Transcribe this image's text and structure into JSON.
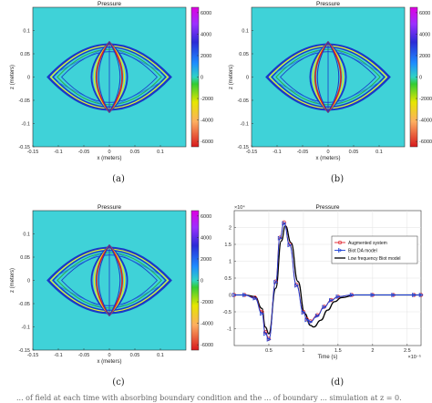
{
  "figure": {
    "captions": [
      "(a)",
      "(b)",
      "(c)",
      "(d)"
    ],
    "bottom_text": "... of field at each time with absorbing boundary condition and the ... of boundary ... simulation at z = 0."
  },
  "chart_data": [
    {
      "type": "heatmap",
      "title": "Pressure",
      "xlabel": "x (meters)",
      "ylabel": "z (meters)",
      "xlim": [
        -0.15,
        0.15
      ],
      "ylim": [
        -0.15,
        0.15
      ],
      "xticks": [
        "-0.15",
        "-0.1",
        "-0.05",
        "0",
        "0.05",
        "0.1"
      ],
      "yticks": [
        "0.1",
        "0.05",
        "0",
        "-0.05",
        "-0.1",
        "-0.15"
      ],
      "colorbar": {
        "range": [
          -6500,
          6500
        ],
        "ticks": [
          "6000",
          "4000",
          "2000",
          "0",
          "-2000",
          "-4000",
          "-6000"
        ],
        "colormap": "jet"
      },
      "wavefronts": {
        "outer_half_width": 0.12,
        "outer_half_height": 0.07,
        "inner_half_width": 0.035,
        "inner_half_height": 0.075
      }
    },
    {
      "type": "heatmap",
      "title": "Pressure",
      "xlabel": "x (meters)",
      "ylabel": "z (meters)",
      "xlim": [
        -0.15,
        0.15
      ],
      "ylim": [
        -0.15,
        0.15
      ],
      "xticks": [
        "-0.15",
        "-0.1",
        "-0.05",
        "0",
        "0.05",
        "0.1"
      ],
      "yticks": [
        "0.1",
        "0.05",
        "0",
        "-0.05",
        "-0.1",
        "-0.15"
      ],
      "colorbar": {
        "range": [
          -6500,
          6500
        ],
        "ticks": [
          "6000",
          "4000",
          "2000",
          "0",
          "-2000",
          "-4000",
          "-6000"
        ],
        "colormap": "jet"
      },
      "wavefronts": {
        "outer_half_width": 0.12,
        "outer_half_height": 0.07,
        "inner_half_width": 0.035,
        "inner_half_height": 0.075
      }
    },
    {
      "type": "heatmap",
      "title": "Pressure",
      "xlabel": "x (meters)",
      "ylabel": "z (meters)",
      "xlim": [
        -0.15,
        0.15
      ],
      "ylim": [
        -0.15,
        0.15
      ],
      "xticks": [
        "-0.15",
        "-0.1",
        "-0.05",
        "0",
        "0.05",
        "0.1"
      ],
      "yticks": [
        "0.1",
        "0.05",
        "0",
        "-0.05",
        "-0.1",
        "-0.15"
      ],
      "colorbar": {
        "range": [
          -6500,
          6500
        ],
        "ticks": [
          "6000",
          "4000",
          "2000",
          "0",
          "-2000",
          "-4000",
          "-6000"
        ],
        "colormap": "jet"
      },
      "wavefronts": {
        "outer_half_width": 0.12,
        "outer_half_height": 0.07,
        "inner_half_width": 0.035,
        "inner_half_height": 0.075
      }
    },
    {
      "type": "line",
      "title": "Pressure",
      "xlabel": "Time (s)",
      "ylabel": "",
      "x_exponent": "×10⁻⁵",
      "y_exponent": "×10⁴",
      "xlim": [
        0,
        2.7
      ],
      "ylim": [
        -1.5,
        2.5
      ],
      "xticks": [
        "0.5",
        "1",
        "1.5",
        "2",
        "2.5"
      ],
      "yticks": [
        "2",
        "1.5",
        "1",
        "0.5",
        "0",
        "-0.5",
        "-1"
      ],
      "legend": "top-right",
      "series": [
        {
          "name": "Augmented system",
          "color": "#e0202a",
          "marker": "circle",
          "x": [
            0.0,
            0.15,
            0.3,
            0.4,
            0.45,
            0.5,
            0.6,
            0.66,
            0.72,
            0.8,
            0.9,
            1.0,
            1.05,
            1.1,
            1.2,
            1.3,
            1.4,
            1.5,
            1.7,
            2.0,
            2.3,
            2.6,
            2.7
          ],
          "y": [
            0.0,
            0.0,
            -0.08,
            -0.5,
            -1.1,
            -1.3,
            0.4,
            1.7,
            2.15,
            1.5,
            0.3,
            -0.5,
            -0.72,
            -0.78,
            -0.6,
            -0.35,
            -0.15,
            -0.05,
            0.0,
            0.0,
            0.0,
            0.0,
            0.0
          ]
        },
        {
          "name": "Biot DA model",
          "color": "#1a3fd6",
          "marker": "triangle-right",
          "x": [
            0.0,
            0.15,
            0.3,
            0.4,
            0.45,
            0.5,
            0.6,
            0.66,
            0.72,
            0.8,
            0.9,
            1.0,
            1.05,
            1.1,
            1.2,
            1.3,
            1.4,
            1.5,
            1.7,
            2.0,
            2.3,
            2.6,
            2.7
          ],
          "y": [
            0.0,
            0.0,
            -0.1,
            -0.55,
            -1.15,
            -1.32,
            0.38,
            1.68,
            2.12,
            1.48,
            0.28,
            -0.52,
            -0.74,
            -0.8,
            -0.62,
            -0.36,
            -0.16,
            -0.05,
            0.0,
            0.0,
            0.0,
            0.0,
            0.0
          ]
        },
        {
          "name": "Low frequency Biot model",
          "color": "#000000",
          "marker": "none",
          "x": [
            0.0,
            0.15,
            0.3,
            0.4,
            0.45,
            0.5,
            0.6,
            0.68,
            0.74,
            0.82,
            0.92,
            1.02,
            1.1,
            1.15,
            1.25,
            1.35,
            1.45,
            1.55,
            1.75,
            2.0,
            2.3,
            2.6,
            2.7
          ],
          "y": [
            0.0,
            0.0,
            -0.05,
            -0.4,
            -0.95,
            -1.15,
            0.2,
            1.6,
            2.05,
            1.55,
            0.4,
            -0.55,
            -0.9,
            -0.95,
            -0.75,
            -0.45,
            -0.2,
            -0.08,
            0.0,
            0.0,
            0.0,
            0.0,
            0.0
          ]
        }
      ]
    }
  ]
}
